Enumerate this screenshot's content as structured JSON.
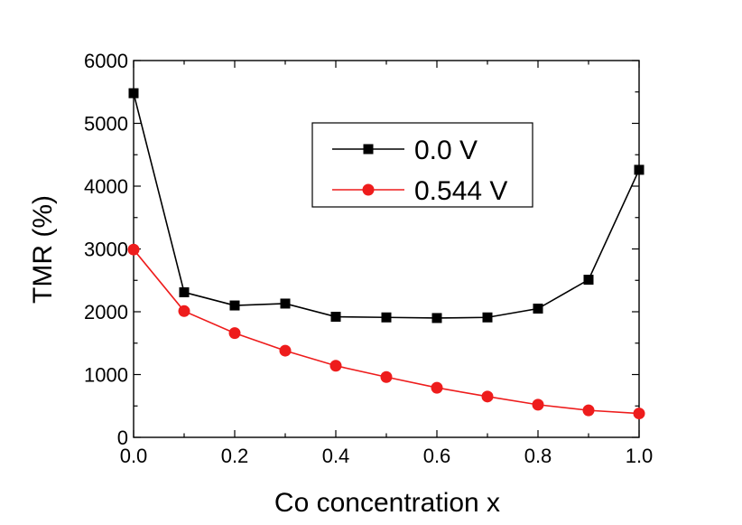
{
  "chart_data": {
    "type": "line",
    "title": "",
    "xlabel": "Co concentration x",
    "ylabel": "TMR (%)",
    "xlim": [
      0.0,
      1.0
    ],
    "ylim": [
      0,
      6000
    ],
    "x_ticks": [
      "0.0",
      "0.2",
      "0.4",
      "0.6",
      "0.8",
      "1.0"
    ],
    "y_ticks": [
      "0",
      "1000",
      "2000",
      "3000",
      "4000",
      "5000",
      "6000"
    ],
    "grid": false,
    "legend_position": "upper-middle",
    "x": [
      0.0,
      0.1,
      0.2,
      0.3,
      0.4,
      0.5,
      0.6,
      0.7,
      0.8,
      0.9,
      1.0
    ],
    "series": [
      {
        "name": "0.0 V",
        "color": "#000000",
        "marker": "square",
        "values": [
          5480,
          2310,
          2100,
          2130,
          1920,
          1910,
          1900,
          1910,
          2050,
          2510,
          4260
        ]
      },
      {
        "name": "0.544 V",
        "color": "#ee1c1c",
        "marker": "circle",
        "values": [
          2990,
          2010,
          1660,
          1380,
          1140,
          960,
          790,
          650,
          520,
          430,
          380
        ]
      }
    ]
  }
}
